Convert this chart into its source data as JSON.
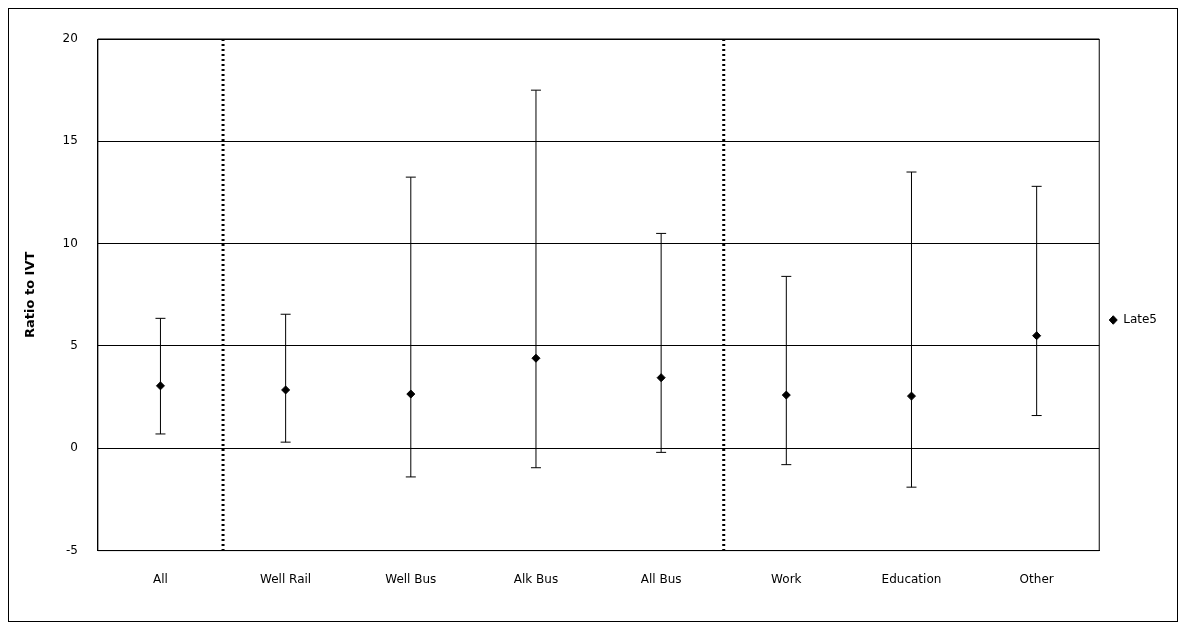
{
  "chart_data": {
    "type": "scatter",
    "ylabel": "Ratio to IVT",
    "categories": [
      "All",
      "Well Rail",
      "Well Bus",
      "Alk Bus",
      "All Bus",
      "Work",
      "Education",
      "Other"
    ],
    "series": [
      {
        "name": "Late5",
        "color": "#000000",
        "values": [
          3.05,
          2.85,
          2.65,
          4.4,
          3.45,
          2.6,
          2.55,
          5.5
        ],
        "errors": [
          [
            0.7,
            6.35
          ],
          [
            0.3,
            6.55
          ],
          [
            -1.4,
            13.25
          ],
          [
            -0.95,
            17.5
          ],
          [
            -0.2,
            10.5
          ],
          [
            -0.8,
            8.4
          ],
          [
            -1.9,
            13.5
          ],
          [
            1.6,
            12.8
          ]
        ]
      }
    ],
    "ylim": [
      -5,
      20
    ],
    "yticks": [
      -5,
      0,
      5,
      10,
      15,
      20
    ],
    "grid": "y",
    "legend": "right",
    "marker": "diamond"
  }
}
